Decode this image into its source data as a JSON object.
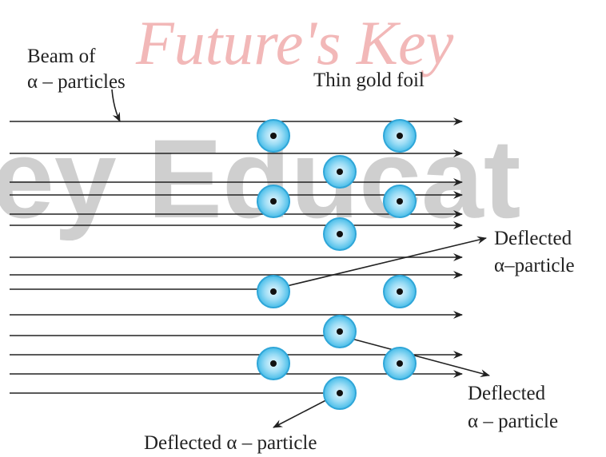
{
  "watermarks": [
    "Future's Key",
    "ey Educat"
  ],
  "labels": {
    "beam": [
      "Beam of",
      "α – particles"
    ],
    "foil": "Thin gold foil",
    "deflected_upper": [
      "Deflected",
      "α–particle"
    ],
    "deflected_lower": [
      "Deflected",
      "α – particle"
    ],
    "deflected_back": "Deflected α – particle"
  }
}
